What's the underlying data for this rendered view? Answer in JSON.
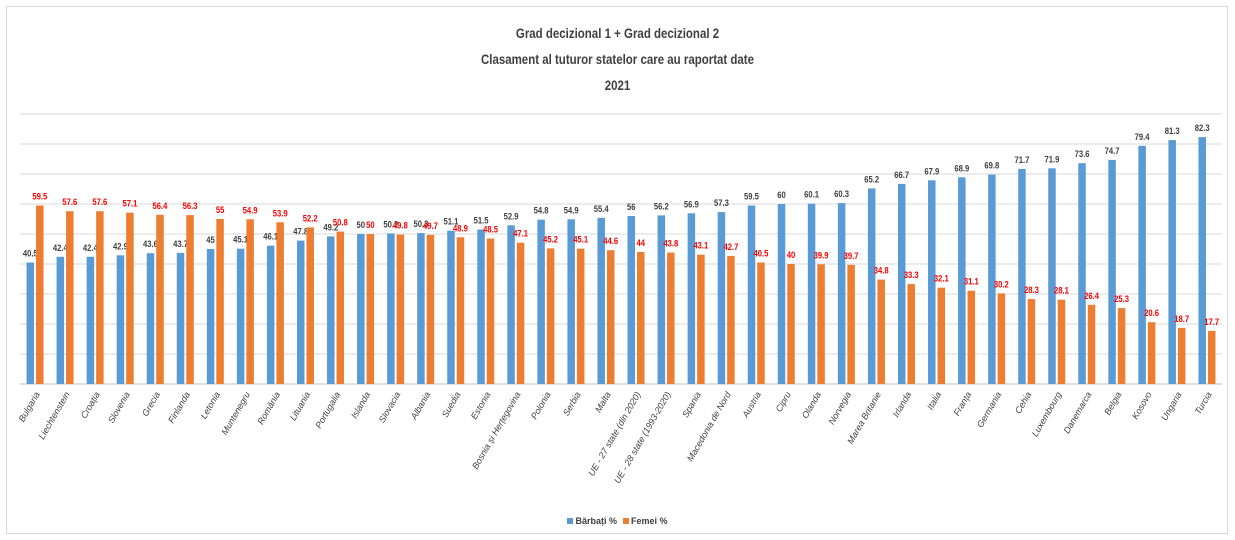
{
  "chart_data": {
    "type": "bar",
    "title_lines": [
      "Grad decizional 1 + Grad decizional 2",
      "Clasament al tuturor statelor care au raportat date",
      "2021"
    ],
    "categories": [
      "Bulgaria",
      "Liechtenstein",
      "Croația",
      "Slovenia",
      "Grecia",
      "Finlanda",
      "Letonia",
      "Muntenegru",
      "România",
      "Lituania",
      "Portugalia",
      "Islanda",
      "Slovacia",
      "Albania",
      "Suedia",
      "Estonia",
      "Bosnia și Herțegovina",
      "Polonia",
      "Serbia",
      "Malta",
      "UE - 27 state (din 2020)",
      "UE - 28 state (1993-2020)",
      "Spania",
      "Macedonia de Nord",
      "Austria",
      "Cipru",
      "Olanda",
      "Norvegia",
      "Marea Britanie",
      "Irlanda",
      "Italia",
      "Franța",
      "Germania",
      "Cehia",
      "Luxembourg",
      "Danemarca",
      "Belgia",
      "Kosovo",
      "Ungaria",
      "Turcia"
    ],
    "series": [
      {
        "name": "Bărbați %",
        "color": "#5b9bd5",
        "label_color": "#404040",
        "values": [
          40.5,
          42.4,
          42.4,
          42.9,
          43.6,
          43.7,
          45,
          45.1,
          46.1,
          47.8,
          49.2,
          50,
          50.2,
          50.3,
          51.1,
          51.5,
          52.9,
          54.8,
          54.9,
          55.4,
          56,
          56.2,
          56.9,
          57.3,
          59.5,
          60,
          60.1,
          60.3,
          65.2,
          66.7,
          67.9,
          68.9,
          69.8,
          71.7,
          71.9,
          73.6,
          74.7,
          79.4,
          81.3,
          82.3
        ]
      },
      {
        "name": "Femei %",
        "color": "#ed7d31",
        "label_color": "#ff0000",
        "values": [
          59.5,
          57.6,
          57.6,
          57.1,
          56.4,
          56.3,
          55,
          54.9,
          53.9,
          52.2,
          50.8,
          50,
          49.8,
          49.7,
          48.9,
          48.5,
          47.1,
          45.2,
          45.1,
          44.6,
          44,
          43.8,
          43.1,
          42.7,
          40.5,
          40,
          39.9,
          39.7,
          34.8,
          33.3,
          32.1,
          31.1,
          30.2,
          28.3,
          28.1,
          26.4,
          25.3,
          20.6,
          18.7,
          17.7
        ]
      }
    ],
    "ylim": [
      0,
      90
    ],
    "grid": true,
    "legend_position": "bottom"
  }
}
